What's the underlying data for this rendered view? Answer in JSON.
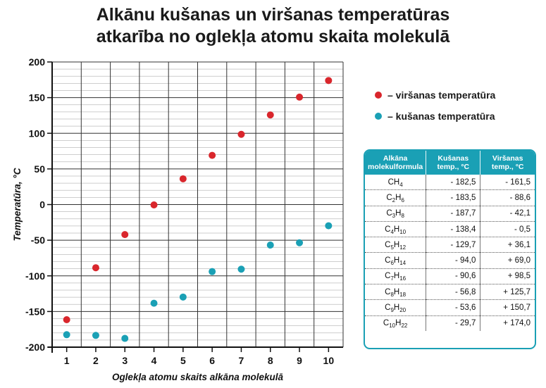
{
  "title": {
    "line1": "Alkānu kušanas un viršanas temperatūras",
    "line2": "atkarība no oglekļa atomu skaita molekulā"
  },
  "colors": {
    "boiling": "#d9262c",
    "melting": "#1aa0b5",
    "table_header": "#1aa0b5"
  },
  "chart_data": {
    "type": "scatter",
    "xlabel": "Oglekļa atomu skaits alkāna molekulā",
    "ylabel": "Temperatūra, °C",
    "xlim": [
      0.5,
      10.5
    ],
    "ylim": [
      -200,
      200
    ],
    "x_ticks": [
      "1",
      "2",
      "3",
      "4",
      "5",
      "6",
      "7",
      "8",
      "9",
      "10"
    ],
    "y_ticks": [
      "200",
      "150",
      "100",
      "50",
      "0",
      "-50",
      "-100",
      "-150",
      "-200"
    ],
    "grid": true,
    "legend_position": "right",
    "x": [
      1,
      2,
      3,
      4,
      5,
      6,
      7,
      8,
      9,
      10
    ],
    "series": [
      {
        "name": "viršanas temperatūra",
        "color": "#d9262c",
        "values": [
          -161.5,
          -88.6,
          -42.1,
          -0.5,
          36.1,
          69.0,
          98.5,
          125.7,
          150.7,
          174.0
        ]
      },
      {
        "name": "kušanas temperatūra",
        "color": "#1aa0b5",
        "values": [
          -182.5,
          -183.5,
          -187.7,
          -138.4,
          -129.7,
          -94.0,
          -90.6,
          -56.8,
          -53.6,
          -29.7
        ]
      }
    ]
  },
  "legend": [
    {
      "label": "– viršanas temperatūra",
      "color": "#d9262c"
    },
    {
      "label": "– kušanas temperatūra",
      "color": "#1aa0b5"
    }
  ],
  "table": {
    "headers": [
      "Alkāna molekulformula",
      "Kušanas temp., °C",
      "Viršanas temp., °C"
    ],
    "rows": [
      {
        "formula": [
          "C",
          "H",
          "4"
        ],
        "melt": "- 182,5",
        "boil": "- 161,5"
      },
      {
        "formula": [
          "C",
          "2",
          "H",
          "6"
        ],
        "melt": "- 183,5",
        "boil": "- 88,6"
      },
      {
        "formula": [
          "C",
          "3",
          "H",
          "8"
        ],
        "melt": "- 187,7",
        "boil": "- 42,1"
      },
      {
        "formula": [
          "C",
          "4",
          "H",
          "10"
        ],
        "melt": "- 138,4",
        "boil": "- 0,5"
      },
      {
        "formula": [
          "C",
          "5",
          "H",
          "12"
        ],
        "melt": "- 129,7",
        "boil": "+ 36,1"
      },
      {
        "formula": [
          "C",
          "6",
          "H",
          "14"
        ],
        "melt": "- 94,0",
        "boil": "+ 69,0"
      },
      {
        "formula": [
          "C",
          "7",
          "H",
          "16"
        ],
        "melt": "- 90,6",
        "boil": "+ 98,5"
      },
      {
        "formula": [
          "C",
          "8",
          "H",
          "18"
        ],
        "melt": "- 56,8",
        "boil": "+ 125,7"
      },
      {
        "formula": [
          "C",
          "9",
          "H",
          "20"
        ],
        "melt": "- 53,6",
        "boil": "+ 150,7"
      },
      {
        "formula": [
          "C",
          "10",
          "H",
          "22"
        ],
        "melt": "- 29,7",
        "boil": "+ 174,0"
      }
    ]
  }
}
